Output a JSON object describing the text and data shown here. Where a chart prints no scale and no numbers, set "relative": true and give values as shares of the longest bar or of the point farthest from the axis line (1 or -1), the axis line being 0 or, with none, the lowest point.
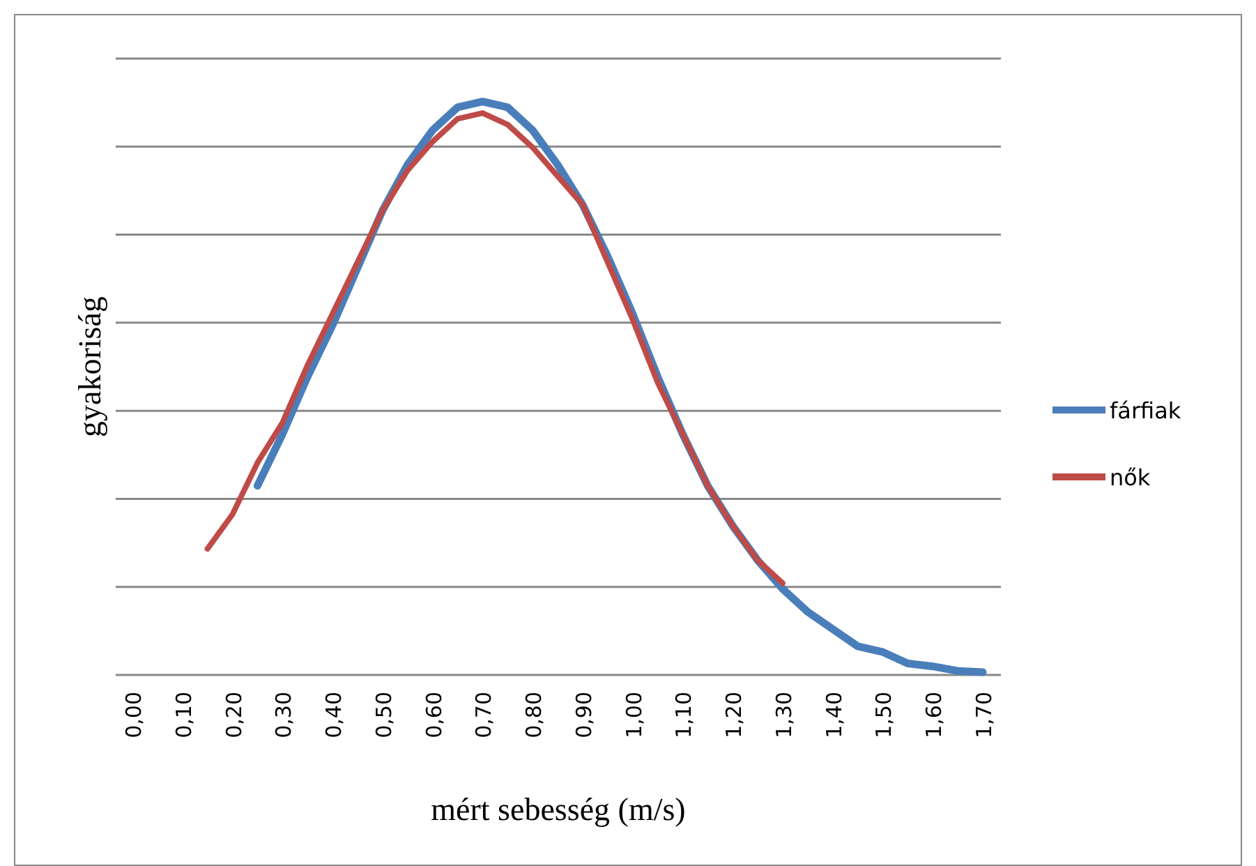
{
  "chart_data": {
    "type": "line",
    "xlabel": "mért sebesség (m/s)",
    "ylabel": "gyakoriság",
    "relative": true,
    "grid": "y",
    "legend": "right",
    "marker": "none",
    "line_style": "solid",
    "categories": [
      "0,00",
      null,
      "0,10",
      null,
      "0,20",
      null,
      "0,30",
      null,
      "0,40",
      null,
      "0,50",
      null,
      "0,60",
      null,
      "0,70",
      null,
      "0,80",
      null,
      "0,90",
      null,
      "1,00",
      null,
      "1,10",
      null,
      "1,20",
      null,
      "1,30",
      null,
      "1,40",
      null,
      "1,50",
      null,
      "1,60",
      null,
      "1,70"
    ],
    "series": [
      {
        "name": "fárfiak",
        "color": "#4a7ebb",
        "values": [
          null,
          null,
          null,
          null,
          null,
          0.33,
          0.42,
          0.52,
          0.61,
          0.71,
          0.81,
          0.89,
          0.95,
          0.99,
          1,
          0.99,
          0.95,
          0.89,
          0.82,
          0.73,
          0.63,
          0.52,
          0.42,
          0.33,
          0.26,
          0.2,
          0.15,
          0.11,
          0.08,
          0.05,
          0.04,
          0.02,
          0.015,
          0.007,
          0.005
        ]
      },
      {
        "name": "nők",
        "color": "#be4b48",
        "values": [
          null,
          null,
          null,
          0.22,
          0.28,
          0.37,
          0.44,
          0.54,
          0.63,
          0.72,
          0.81,
          0.88,
          0.93,
          0.97,
          0.98,
          0.96,
          0.92,
          0.87,
          0.82,
          0.72,
          0.62,
          0.51,
          0.42,
          0.33,
          0.26,
          0.2,
          0.16,
          null,
          null,
          null,
          null,
          null,
          null,
          null,
          null
        ]
      }
    ]
  }
}
